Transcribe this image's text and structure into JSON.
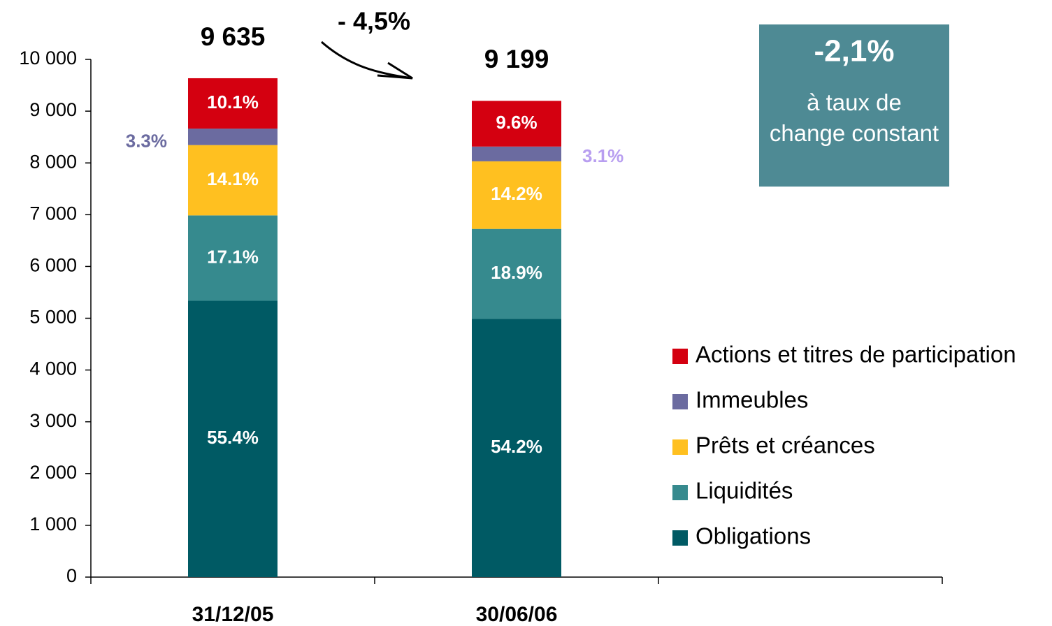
{
  "chart_data": {
    "type": "stacked_bar",
    "categories": [
      "31/12/05",
      "30/06/06",
      null
    ],
    "ylim": [
      0,
      10000
    ],
    "yticks": [
      0,
      {
        "value": 1000,
        "label": "1 000"
      },
      {
        "value": 2000,
        "label": "2 000"
      },
      {
        "value": 3000,
        "label": "3 000"
      },
      {
        "value": 4000,
        "label": "4 000"
      },
      {
        "value": 5000,
        "label": "5 000"
      },
      {
        "value": 6000,
        "label": "6 000"
      },
      {
        "value": 7000,
        "label": "7 000"
      },
      {
        "value": 8000,
        "label": "8 000"
      },
      {
        "value": 9000,
        "label": "9 000"
      },
      {
        "value": 10000,
        "label": "10 000"
      }
    ],
    "series": [
      {
        "name": "Obligations",
        "color": "#005a64",
        "values": [
          5338,
          4986,
          null
        ],
        "labels": [
          "55.4%",
          "54.2%",
          null
        ]
      },
      {
        "name": "Liquidités",
        "color": "#368a8e",
        "values": [
          1648,
          1739,
          null
        ],
        "labels": [
          "17.1%",
          "18.9%",
          null
        ]
      },
      {
        "name": "Prêts et créances",
        "color": "#ffc020",
        "values": [
          1359,
          1306,
          null
        ],
        "labels": [
          "14.1%",
          "14.2%",
          null
        ]
      },
      {
        "name": "Immeubles",
        "color": "#6b6ba0",
        "values": [
          318,
          285,
          null
        ],
        "labels": [
          "3.3%",
          "3.1%",
          null
        ],
        "label_colors": [
          "#6b6ba0",
          "#b89ef0"
        ]
      },
      {
        "name": "Actions et titres de participation",
        "color": "#d40010",
        "values": [
          973,
          883,
          null
        ],
        "labels": [
          "10.1%",
          "9.6%",
          null
        ]
      }
    ],
    "total_labels": [
      "9 635",
      "9 199"
    ],
    "change_label": "- 4,5%",
    "box": {
      "value_text": "-2,1%",
      "text": "à taux de change constant",
      "color": "#4e8a94"
    }
  }
}
